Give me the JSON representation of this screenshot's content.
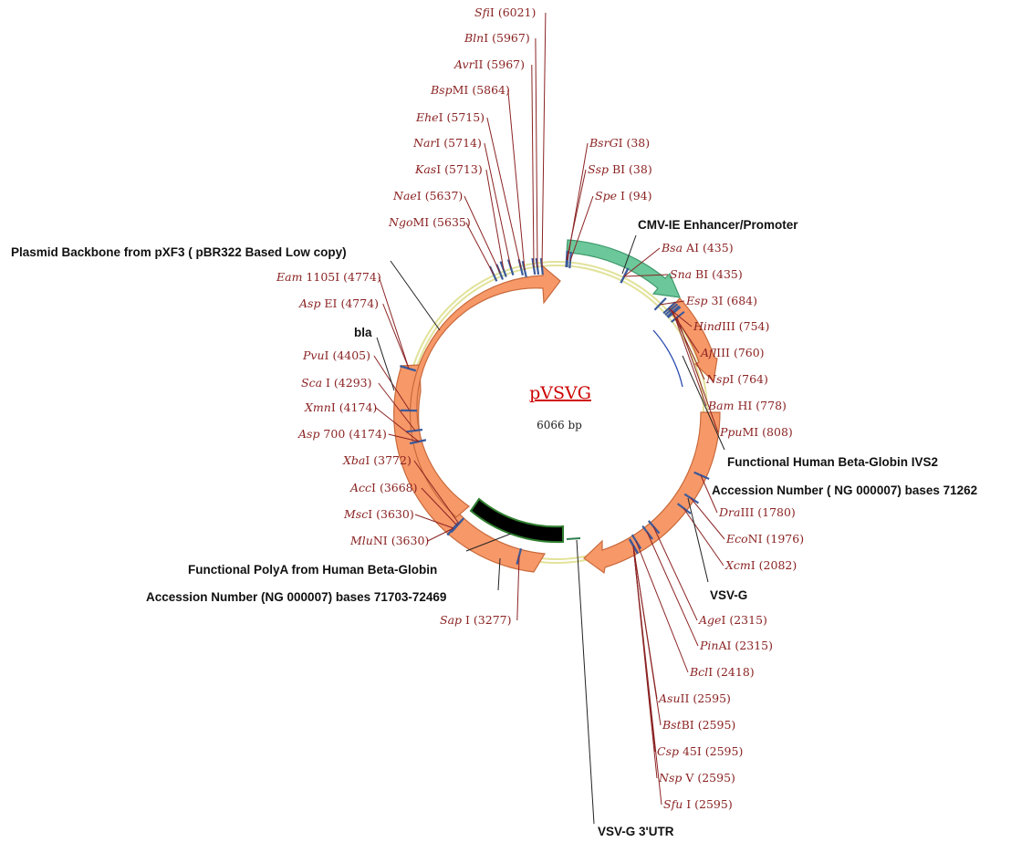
{
  "plasmid": {
    "name": "pVSVG",
    "size_label": "6066 bp"
  },
  "colors": {
    "enzyme_text": "#8b2323",
    "enzyme_leader": "#8b2323",
    "site_tick": "#3b5b9b",
    "feature_orange": "#f79868",
    "promoter_green": "#6cc79a",
    "polya_black": "#000000",
    "backbone_yellow": "#e2e29a",
    "title_red": "#cc0000"
  },
  "enzymes": [
    {
      "italic": "Sfi",
      "rest": "I (6021)"
    },
    {
      "italic": "Bln",
      "rest": "I (5967)"
    },
    {
      "italic": "Avr",
      "rest": "II (5967)"
    },
    {
      "italic": "Bsp",
      "rest": "MI (5864)"
    },
    {
      "italic": "Ehe",
      "rest": "I (5715)"
    },
    {
      "italic": "Nar",
      "rest": "I (5714)"
    },
    {
      "italic": "Kas",
      "rest": "I (5713)"
    },
    {
      "italic": "Nae",
      "rest": "I (5637)"
    },
    {
      "italic": "Ngo",
      "rest": "MI (5635)"
    },
    {
      "italic": "BsrG",
      "rest": "I (38)"
    },
    {
      "italic": "Ssp",
      "rest": " BI (38)"
    },
    {
      "italic": "Spe",
      "rest": " I (94)"
    },
    {
      "italic": "Bsa",
      "rest": " AI (435)"
    },
    {
      "italic": "Sna",
      "rest": " BI (435)"
    },
    {
      "italic": "Esp",
      "rest": " 3I (684)"
    },
    {
      "italic": "Hind",
      "rest": "III (754)"
    },
    {
      "italic": "Afl",
      "rest": "III (760)"
    },
    {
      "italic": "Nsp",
      "rest": "I (764)"
    },
    {
      "italic": "Bam",
      "rest": " HI (778)"
    },
    {
      "italic": "Ppu",
      "rest": "MI (808)"
    },
    {
      "italic": "Dra",
      "rest": "III (1780)"
    },
    {
      "italic": "Eco",
      "rest": "NI (1976)"
    },
    {
      "italic": "Xcm",
      "rest": "I (2082)"
    },
    {
      "italic": "Age",
      "rest": "I (2315)"
    },
    {
      "italic": "Pin",
      "rest": "AI (2315)"
    },
    {
      "italic": "Bcl",
      "rest": "I (2418)"
    },
    {
      "italic": "Asu",
      "rest": "II (2595)"
    },
    {
      "italic": "Bst",
      "rest": "BI (2595)"
    },
    {
      "italic": "Csp",
      "rest": " 45I (2595)"
    },
    {
      "italic": "Nsp",
      "rest": " V (2595)"
    },
    {
      "italic": "Sfu",
      "rest": " I (2595)"
    },
    {
      "italic": "Sap",
      "rest": " I (3277)"
    },
    {
      "italic": "Mlu",
      "rest": "NI (3630)"
    },
    {
      "italic": "Msc",
      "rest": "I (3630)"
    },
    {
      "italic": "Acc",
      "rest": "I (3668)"
    },
    {
      "italic": "Xba",
      "rest": "I (3772)"
    },
    {
      "italic": "Asp",
      "rest": " 700 (4174)"
    },
    {
      "italic": "Xmn",
      "rest": "I (4174)"
    },
    {
      "italic": "Sca",
      "rest": " I (4293)"
    },
    {
      "italic": "Pvu",
      "rest": "I (4405)"
    },
    {
      "italic": "Asp",
      "rest": " EI (4774)"
    },
    {
      "italic": "Eam",
      "rest": " 1105I (4774)"
    }
  ],
  "features": {
    "backbone": "Plasmid Backbone from pXF3 ( pBR322 Based Low copy)",
    "promoter": "CMV-IE Enhancer/Promoter",
    "bla": "bla",
    "ivs2_line1": "Functional Human Beta-Globin IVS2",
    "ivs2_line2": "Accession Number ( NG 000007) bases 71262",
    "vsvg": "VSV-G",
    "polya_line1": "Functional PolyA from Human Beta-Globin",
    "polya_line2": "Accession Number (NG 000007) bases 71703-72469",
    "utr": "VSV-G 3'UTR"
  }
}
